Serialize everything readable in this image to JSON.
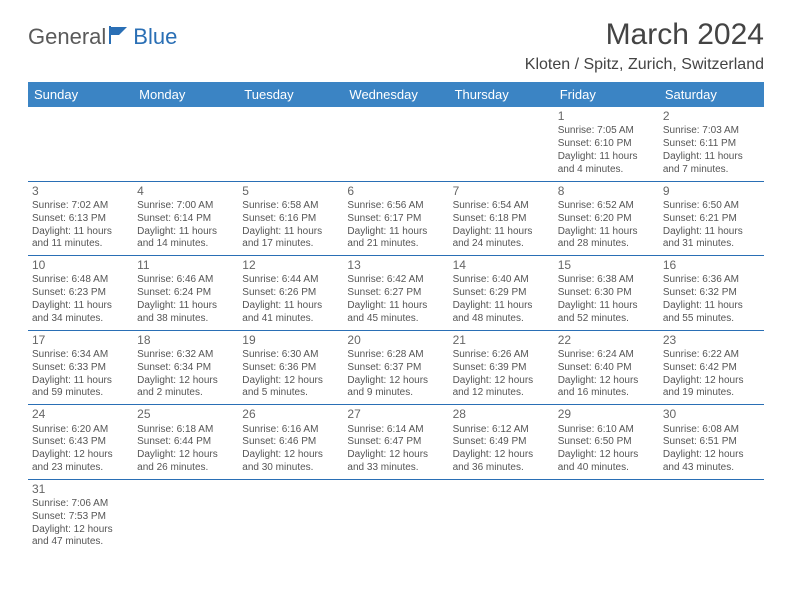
{
  "logo": {
    "part1": "General",
    "part2": "Blue"
  },
  "title": "March 2024",
  "location": "Kloten / Spitz, Zurich, Switzerland",
  "colors": {
    "header_bg": "#3b84c4",
    "header_text": "#ffffff",
    "border": "#2a6fb5",
    "body_text": "#555555",
    "title_text": "#444444"
  },
  "daysOfWeek": [
    "Sunday",
    "Monday",
    "Tuesday",
    "Wednesday",
    "Thursday",
    "Friday",
    "Saturday"
  ],
  "weeks": [
    [
      null,
      null,
      null,
      null,
      null,
      {
        "n": "1",
        "sunrise": "7:05 AM",
        "sunset": "6:10 PM",
        "daylight": "11 hours and 4 minutes."
      },
      {
        "n": "2",
        "sunrise": "7:03 AM",
        "sunset": "6:11 PM",
        "daylight": "11 hours and 7 minutes."
      }
    ],
    [
      {
        "n": "3",
        "sunrise": "7:02 AM",
        "sunset": "6:13 PM",
        "daylight": "11 hours and 11 minutes."
      },
      {
        "n": "4",
        "sunrise": "7:00 AM",
        "sunset": "6:14 PM",
        "daylight": "11 hours and 14 minutes."
      },
      {
        "n": "5",
        "sunrise": "6:58 AM",
        "sunset": "6:16 PM",
        "daylight": "11 hours and 17 minutes."
      },
      {
        "n": "6",
        "sunrise": "6:56 AM",
        "sunset": "6:17 PM",
        "daylight": "11 hours and 21 minutes."
      },
      {
        "n": "7",
        "sunrise": "6:54 AM",
        "sunset": "6:18 PM",
        "daylight": "11 hours and 24 minutes."
      },
      {
        "n": "8",
        "sunrise": "6:52 AM",
        "sunset": "6:20 PM",
        "daylight": "11 hours and 28 minutes."
      },
      {
        "n": "9",
        "sunrise": "6:50 AM",
        "sunset": "6:21 PM",
        "daylight": "11 hours and 31 minutes."
      }
    ],
    [
      {
        "n": "10",
        "sunrise": "6:48 AM",
        "sunset": "6:23 PM",
        "daylight": "11 hours and 34 minutes."
      },
      {
        "n": "11",
        "sunrise": "6:46 AM",
        "sunset": "6:24 PM",
        "daylight": "11 hours and 38 minutes."
      },
      {
        "n": "12",
        "sunrise": "6:44 AM",
        "sunset": "6:26 PM",
        "daylight": "11 hours and 41 minutes."
      },
      {
        "n": "13",
        "sunrise": "6:42 AM",
        "sunset": "6:27 PM",
        "daylight": "11 hours and 45 minutes."
      },
      {
        "n": "14",
        "sunrise": "6:40 AM",
        "sunset": "6:29 PM",
        "daylight": "11 hours and 48 minutes."
      },
      {
        "n": "15",
        "sunrise": "6:38 AM",
        "sunset": "6:30 PM",
        "daylight": "11 hours and 52 minutes."
      },
      {
        "n": "16",
        "sunrise": "6:36 AM",
        "sunset": "6:32 PM",
        "daylight": "11 hours and 55 minutes."
      }
    ],
    [
      {
        "n": "17",
        "sunrise": "6:34 AM",
        "sunset": "6:33 PM",
        "daylight": "11 hours and 59 minutes."
      },
      {
        "n": "18",
        "sunrise": "6:32 AM",
        "sunset": "6:34 PM",
        "daylight": "12 hours and 2 minutes."
      },
      {
        "n": "19",
        "sunrise": "6:30 AM",
        "sunset": "6:36 PM",
        "daylight": "12 hours and 5 minutes."
      },
      {
        "n": "20",
        "sunrise": "6:28 AM",
        "sunset": "6:37 PM",
        "daylight": "12 hours and 9 minutes."
      },
      {
        "n": "21",
        "sunrise": "6:26 AM",
        "sunset": "6:39 PM",
        "daylight": "12 hours and 12 minutes."
      },
      {
        "n": "22",
        "sunrise": "6:24 AM",
        "sunset": "6:40 PM",
        "daylight": "12 hours and 16 minutes."
      },
      {
        "n": "23",
        "sunrise": "6:22 AM",
        "sunset": "6:42 PM",
        "daylight": "12 hours and 19 minutes."
      }
    ],
    [
      {
        "n": "24",
        "sunrise": "6:20 AM",
        "sunset": "6:43 PM",
        "daylight": "12 hours and 23 minutes."
      },
      {
        "n": "25",
        "sunrise": "6:18 AM",
        "sunset": "6:44 PM",
        "daylight": "12 hours and 26 minutes."
      },
      {
        "n": "26",
        "sunrise": "6:16 AM",
        "sunset": "6:46 PM",
        "daylight": "12 hours and 30 minutes."
      },
      {
        "n": "27",
        "sunrise": "6:14 AM",
        "sunset": "6:47 PM",
        "daylight": "12 hours and 33 minutes."
      },
      {
        "n": "28",
        "sunrise": "6:12 AM",
        "sunset": "6:49 PM",
        "daylight": "12 hours and 36 minutes."
      },
      {
        "n": "29",
        "sunrise": "6:10 AM",
        "sunset": "6:50 PM",
        "daylight": "12 hours and 40 minutes."
      },
      {
        "n": "30",
        "sunrise": "6:08 AM",
        "sunset": "6:51 PM",
        "daylight": "12 hours and 43 minutes."
      }
    ],
    [
      {
        "n": "31",
        "sunrise": "7:06 AM",
        "sunset": "7:53 PM",
        "daylight": "12 hours and 47 minutes."
      },
      null,
      null,
      null,
      null,
      null,
      null
    ]
  ],
  "labels": {
    "sunrise": "Sunrise: ",
    "sunset": "Sunset: ",
    "daylight": "Daylight: "
  }
}
